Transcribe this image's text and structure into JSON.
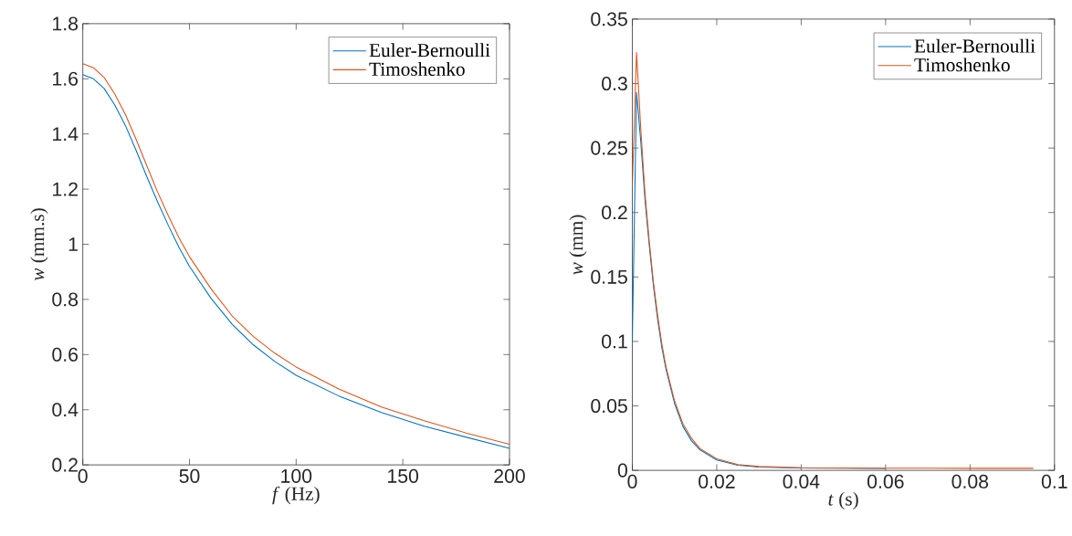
{
  "chart_data": [
    {
      "type": "line",
      "xlabel": "*f* (Hz)",
      "ylabel": "*w* (mm.s)",
      "legend": "top right",
      "x": [
        0,
        5,
        10,
        15,
        20,
        25,
        30,
        35,
        40,
        45,
        50,
        60,
        70,
        80,
        90,
        100,
        120,
        140,
        160,
        180,
        200
      ],
      "series": [
        {
          "name": "Euler-Bernoulli",
          "color": "#0072bd",
          "values": [
            1.615,
            1.6,
            1.565,
            1.505,
            1.43,
            1.34,
            1.245,
            1.155,
            1.07,
            0.99,
            0.92,
            0.805,
            0.71,
            0.635,
            0.575,
            0.525,
            0.45,
            0.39,
            0.34,
            0.3,
            0.26
          ]
        },
        {
          "name": "Timoshenko",
          "color": "#d95319",
          "values": [
            1.655,
            1.64,
            1.605,
            1.545,
            1.47,
            1.38,
            1.285,
            1.19,
            1.105,
            1.025,
            0.955,
            0.84,
            0.74,
            0.665,
            0.605,
            0.555,
            0.475,
            0.41,
            0.36,
            0.315,
            0.275
          ]
        }
      ],
      "xlim": [
        0,
        200
      ],
      "ylim": [
        0.2,
        1.8
      ],
      "xticks": [
        0,
        50,
        100,
        150,
        200
      ],
      "yticks": [
        0.2,
        0.4,
        0.6,
        0.8,
        1,
        1.2,
        1.4,
        1.6,
        1.8
      ]
    },
    {
      "type": "line",
      "xlabel": "*t* (s)",
      "ylabel": "*w* (mm)",
      "legend": "top right",
      "x": [
        0,
        0.001,
        0.002,
        0.003,
        0.004,
        0.005,
        0.006,
        0.007,
        0.008,
        0.01,
        0.012,
        0.014,
        0.016,
        0.02,
        0.025,
        0.03,
        0.04,
        0.06,
        0.08,
        0.095
      ],
      "series": [
        {
          "name": "Euler-Bernoulli",
          "color": "#0072bd",
          "values": [
            0.1,
            0.293,
            0.255,
            0.21,
            0.175,
            0.143,
            0.117,
            0.095,
            0.078,
            0.052,
            0.034,
            0.023,
            0.016,
            0.008,
            0.004,
            0.0025,
            0.0018,
            0.0015,
            null,
            null
          ]
        },
        {
          "name": "Timoshenko",
          "color": "#d95319",
          "values": [
            0.22,
            0.324,
            0.265,
            0.215,
            0.178,
            0.146,
            0.12,
            0.098,
            0.08,
            0.054,
            0.036,
            0.025,
            0.017,
            0.009,
            0.0045,
            0.003,
            0.002,
            0.0017,
            0.0016,
            0.0016
          ]
        }
      ],
      "xlim": [
        0,
        0.1
      ],
      "ylim": [
        0,
        0.35
      ],
      "xticks": [
        0,
        0.02,
        0.04,
        0.06,
        0.08,
        0.1
      ],
      "yticks": [
        0,
        0.05,
        0.1,
        0.15,
        0.2,
        0.25,
        0.3,
        0.35
      ]
    }
  ]
}
